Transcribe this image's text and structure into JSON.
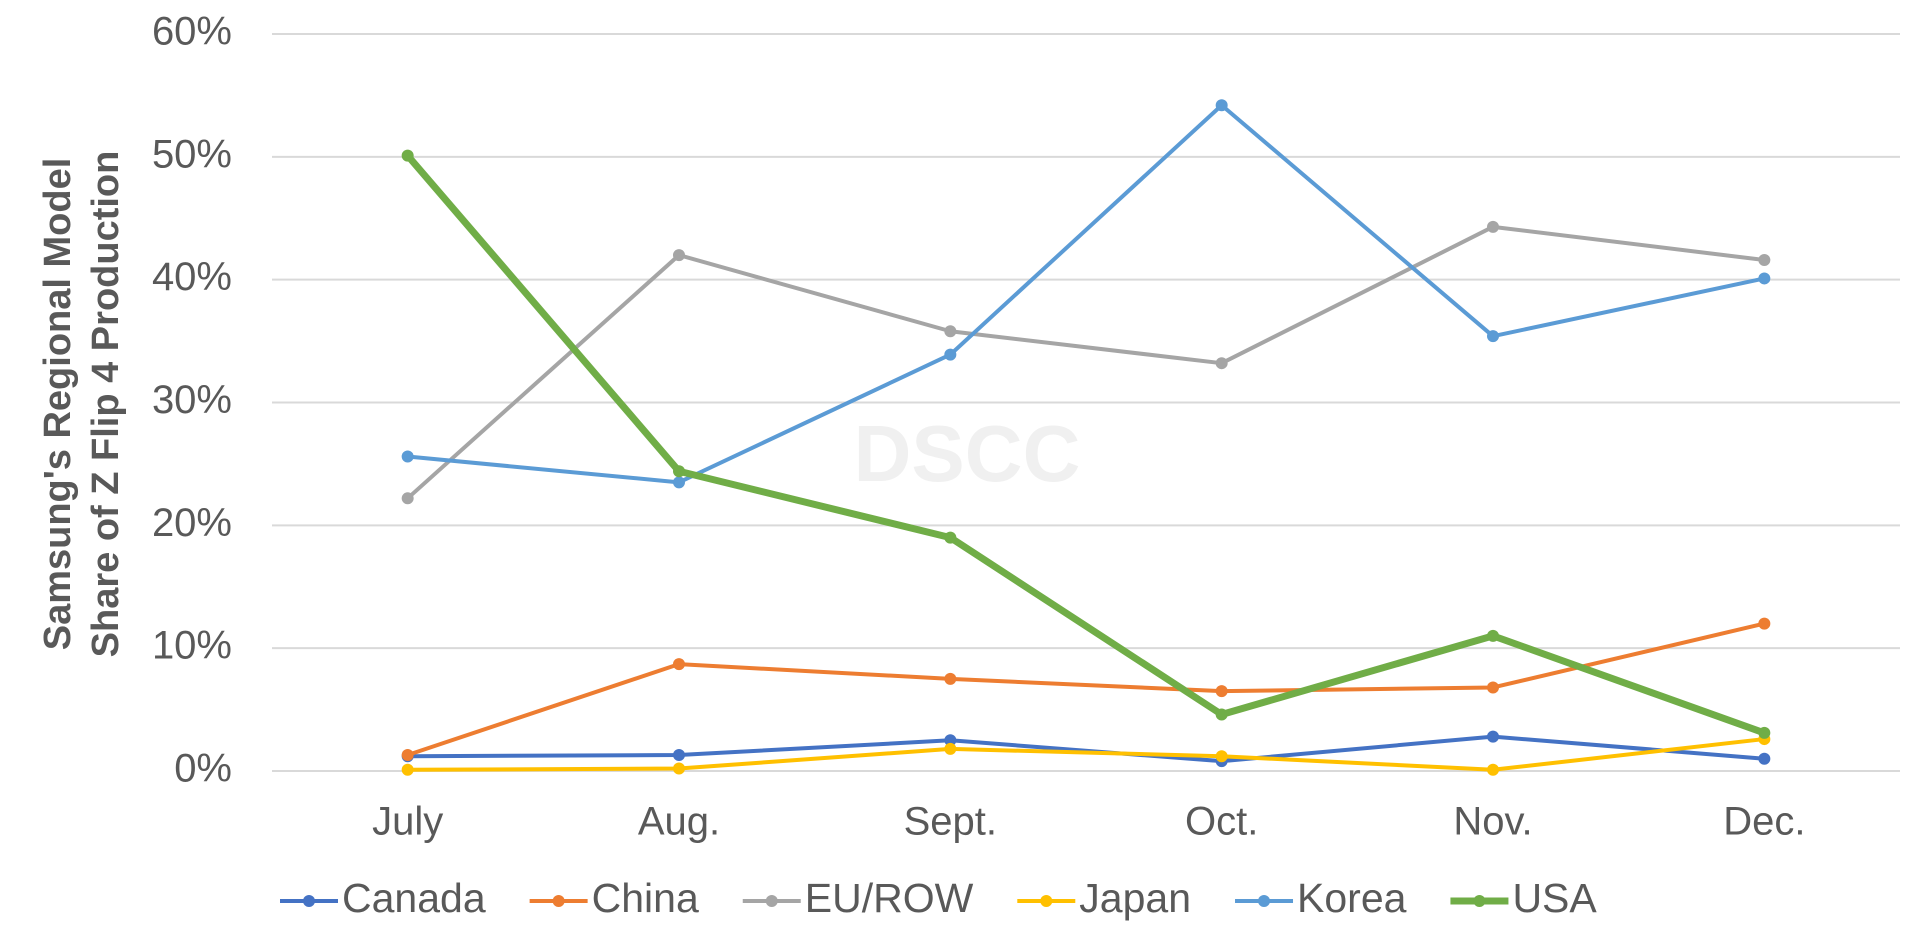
{
  "chart_data": {
    "type": "line",
    "ylabel": [
      "Samsung's Regional Model",
      "Share of Z Flip 4 Production"
    ],
    "watermark": "DSCC",
    "categories": [
      "July",
      "Aug.",
      "Sept.",
      "Oct.",
      "Nov.",
      "Dec."
    ],
    "series": [
      {
        "name": "Canada",
        "color": "#4472c4",
        "values": [
          1.2,
          1.3,
          2.5,
          0.8,
          2.8,
          1.0
        ]
      },
      {
        "name": "China",
        "color": "#ed7d31",
        "values": [
          1.3,
          8.7,
          7.5,
          6.5,
          6.8,
          12.0
        ]
      },
      {
        "name": "EU/ROW",
        "color": "#a5a5a5",
        "values": [
          22.2,
          42.0,
          35.8,
          33.2,
          44.3,
          41.6
        ]
      },
      {
        "name": "Japan",
        "color": "#ffc000",
        "values": [
          0.1,
          0.2,
          1.8,
          1.2,
          0.1,
          2.6
        ]
      },
      {
        "name": "Korea",
        "color": "#5b9bd5",
        "values": [
          25.6,
          23.5,
          33.9,
          54.2,
          35.4,
          40.1
        ]
      },
      {
        "name": "USA",
        "color": "#70ad47",
        "values": [
          50.1,
          24.4,
          19.0,
          4.6,
          11.0,
          3.1
        ]
      }
    ],
    "ylim": [
      0,
      60
    ],
    "yticks": [
      {
        "value": 0,
        "label": "0%"
      },
      {
        "value": 10,
        "label": "10%"
      },
      {
        "value": 20,
        "label": "20%"
      },
      {
        "value": 30,
        "label": "30%"
      },
      {
        "value": 40,
        "label": "40%"
      },
      {
        "value": 50,
        "label": "50%"
      },
      {
        "value": 60,
        "label": "60%"
      }
    ],
    "grid": true,
    "legend": "bottom"
  }
}
